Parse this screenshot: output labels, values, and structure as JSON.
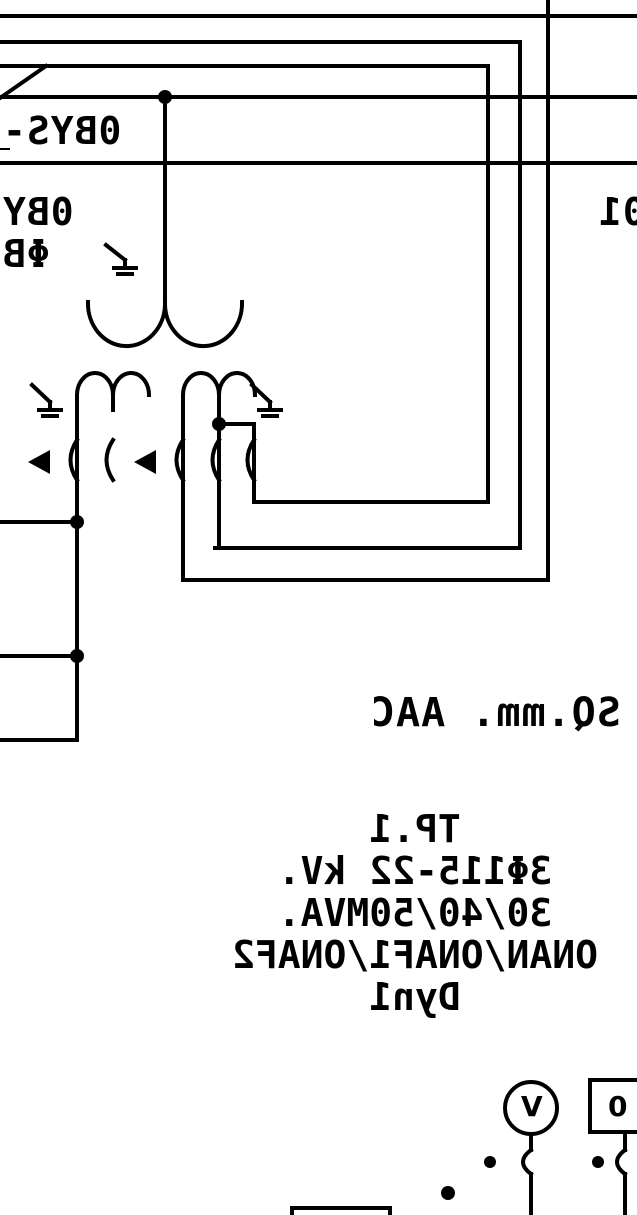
{
  "labels": {
    "obys_top": "0BYS-",
    "oby_left": "0BY",
    "phase_b": "ΦB",
    "right_edge": "01",
    "conductor": "SQ.mm. AAC"
  },
  "transformer": {
    "name": "TP.1",
    "voltage": "3Φ115-22 kV.",
    "rating": "30/40/50MVA.",
    "cooling": "ONAN/ONAF1/ONAF2",
    "vector_group": "Dyn1"
  },
  "meters": {
    "voltmeter": "V",
    "right_box": "0"
  },
  "colors": {
    "line": "#000000",
    "background": "#ffffff"
  }
}
